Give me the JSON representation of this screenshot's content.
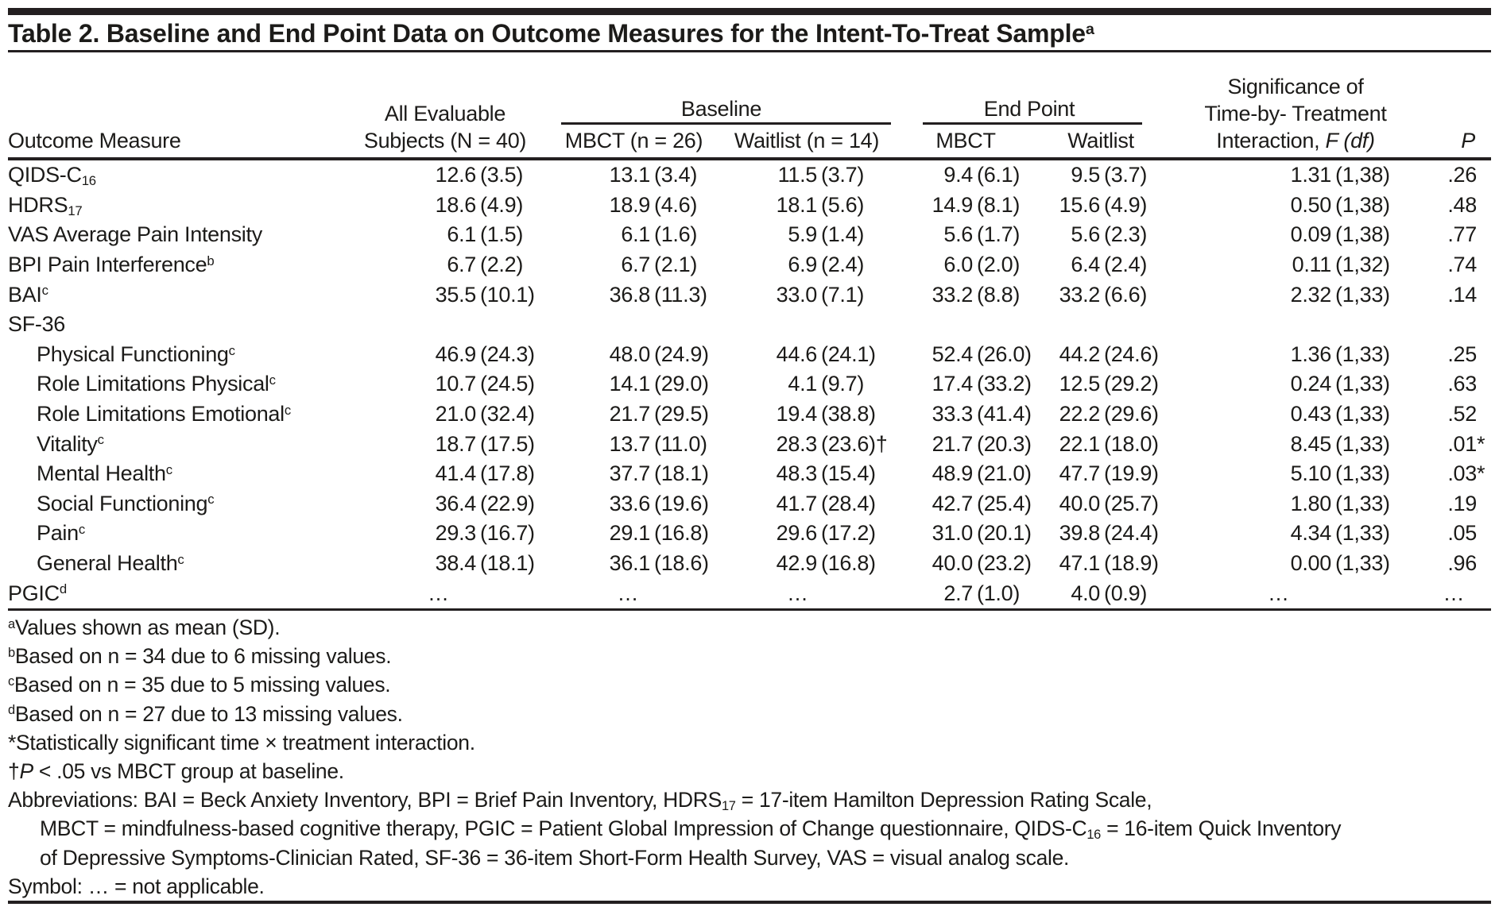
{
  "title": [
    {
      "t": "Table 2. Baseline and End Point Data on Outcome Measures for the Intent-To-Treat Sample"
    },
    {
      "t": "a",
      "style": "sup"
    }
  ],
  "table": {
    "headers": {
      "outcome_measure": "Outcome Measure",
      "all_evaluable": [
        "All Evaluable",
        "Subjects (N = 40)"
      ],
      "baseline_group": "Baseline",
      "baseline_mbct": "MBCT (n = 26)",
      "baseline_waitlist": "Waitlist (n = 14)",
      "endpoint_group": "End Point",
      "endpoint_mbct": "MBCT",
      "endpoint_waitlist": "Waitlist",
      "significance": [
        "Significance of",
        "Time-by- Treatment"
      ],
      "significance_line3": [
        {
          "t": "Interaction, "
        },
        {
          "t": "F (df)",
          "style": "i"
        }
      ],
      "p": [
        {
          "t": "P",
          "style": "i"
        }
      ]
    },
    "rows": [
      {
        "label": [
          {
            "t": "QIDS-C"
          },
          {
            "t": "16",
            "style": "sub"
          }
        ],
        "indent": false,
        "values": [
          "12.6 (3.5)",
          "13.1 (3.4)",
          "11.5 (3.7)",
          "9.4 (6.1)",
          "9.5 (3.7)",
          "1.31 (1,38)",
          ".26"
        ]
      },
      {
        "label": [
          {
            "t": "HDRS"
          },
          {
            "t": "17",
            "style": "sub"
          }
        ],
        "indent": false,
        "values": [
          "18.6 (4.9)",
          "18.9 (4.6)",
          "18.1 (5.6)",
          "14.9 (8.1)",
          "15.6 (4.9)",
          "0.50 (1,38)",
          ".48"
        ]
      },
      {
        "label": [
          {
            "t": "VAS Average Pain Intensity"
          }
        ],
        "indent": false,
        "values": [
          "6.1 (1.5)",
          "6.1 (1.6)",
          "5.9 (1.4)",
          "5.6 (1.7)",
          "5.6 (2.3)",
          "0.09 (1,38)",
          ".77"
        ]
      },
      {
        "label": [
          {
            "t": "BPI Pain Interference"
          },
          {
            "t": "b",
            "style": "sup"
          }
        ],
        "indent": false,
        "values": [
          "6.7 (2.2)",
          "6.7 (2.1)",
          "6.9 (2.4)",
          "6.0 (2.0)",
          "6.4 (2.4)",
          "0.11 (1,32)",
          ".74"
        ]
      },
      {
        "label": [
          {
            "t": "BAI"
          },
          {
            "t": "c",
            "style": "sup"
          }
        ],
        "indent": false,
        "values": [
          "35.5 (10.1)",
          "36.8 (11.3)",
          "33.0 (7.1)",
          "33.2 (8.8)",
          "33.2 (6.6)",
          "2.32 (1,33)",
          ".14"
        ]
      },
      {
        "label": [
          {
            "t": "SF-36"
          }
        ],
        "indent": false,
        "values": [
          "",
          "",
          "",
          "",
          "",
          "",
          ""
        ]
      },
      {
        "label": [
          {
            "t": "Physical Functioning"
          },
          {
            "t": "c",
            "style": "sup"
          }
        ],
        "indent": true,
        "values": [
          "46.9 (24.3)",
          "48.0 (24.9)",
          "44.6 (24.1)",
          "52.4 (26.0)",
          "44.2 (24.6)",
          "1.36 (1,33)",
          ".25"
        ]
      },
      {
        "label": [
          {
            "t": "Role Limitations Physical"
          },
          {
            "t": "c",
            "style": "sup"
          }
        ],
        "indent": true,
        "values": [
          "10.7 (24.5)",
          "14.1 (29.0)",
          "4.1 (9.7)",
          "17.4 (33.2)",
          "12.5 (29.2)",
          "0.24 (1,33)",
          ".63"
        ]
      },
      {
        "label": [
          {
            "t": "Role Limitations Emotional"
          },
          {
            "t": "c",
            "style": "sup"
          }
        ],
        "indent": true,
        "values": [
          "21.0 (32.4)",
          "21.7 (29.5)",
          "19.4 (38.8)",
          "33.3 (41.4)",
          "22.2 (29.6)",
          "0.43 (1,33)",
          ".52"
        ]
      },
      {
        "label": [
          {
            "t": "Vitality"
          },
          {
            "t": "c",
            "style": "sup"
          }
        ],
        "indent": true,
        "values": [
          "18.7 (17.5)",
          "13.7 (11.0)",
          "28.3 (23.6)†",
          "21.7 (20.3)",
          "22.1 (18.0)",
          "8.45 (1,33)",
          ".01*"
        ]
      },
      {
        "label": [
          {
            "t": "Mental Health"
          },
          {
            "t": "c",
            "style": "sup"
          }
        ],
        "indent": true,
        "values": [
          "41.4 (17.8)",
          "37.7 (18.1)",
          "48.3 (15.4)",
          "48.9 (21.0)",
          "47.7 (19.9)",
          "5.10 (1,33)",
          ".03*"
        ]
      },
      {
        "label": [
          {
            "t": "Social Functioning"
          },
          {
            "t": "c",
            "style": "sup"
          }
        ],
        "indent": true,
        "values": [
          "36.4 (22.9)",
          "33.6 (19.6)",
          "41.7 (28.4)",
          "42.7 (25.4)",
          "40.0 (25.7)",
          "1.80 (1,33)",
          ".19"
        ]
      },
      {
        "label": [
          {
            "t": "Pain"
          },
          {
            "t": "c",
            "style": "sup"
          }
        ],
        "indent": true,
        "values": [
          "29.3 (16.7)",
          "29.1 (16.8)",
          "29.6 (17.2)",
          "31.0 (20.1)",
          "39.8 (24.4)",
          "4.34 (1,33)",
          ".05"
        ]
      },
      {
        "label": [
          {
            "t": "General Health"
          },
          {
            "t": "c",
            "style": "sup"
          }
        ],
        "indent": true,
        "values": [
          "38.4 (18.1)",
          "36.1 (18.6)",
          "42.9 (16.8)",
          "40.0 (23.2)",
          "47.1 (18.9)",
          "0.00 (1,33)",
          ".96"
        ]
      },
      {
        "label": [
          {
            "t": "PGIC"
          },
          {
            "t": "d",
            "style": "sup"
          }
        ],
        "indent": false,
        "values": [
          "…",
          "…",
          "…",
          "2.7 (1.0)",
          "4.0 (0.9)",
          "…",
          "…"
        ]
      }
    ]
  },
  "footnotes": [
    {
      "indent": false,
      "segments": [
        {
          "t": "a",
          "style": "sup"
        },
        {
          "t": "Values shown as mean (SD)."
        }
      ]
    },
    {
      "indent": false,
      "segments": [
        {
          "t": "b",
          "style": "sup"
        },
        {
          "t": "Based on n = 34 due to 6 missing values."
        }
      ]
    },
    {
      "indent": false,
      "segments": [
        {
          "t": "c",
          "style": "sup"
        },
        {
          "t": "Based on n = 35 due to 5 missing values."
        }
      ]
    },
    {
      "indent": false,
      "segments": [
        {
          "t": "d",
          "style": "sup"
        },
        {
          "t": "Based on n = 27 due to 13 missing values."
        }
      ]
    },
    {
      "indent": false,
      "segments": [
        {
          "t": "*Statistically significant time × treatment interaction."
        }
      ]
    },
    {
      "indent": false,
      "segments": [
        {
          "t": "†"
        },
        {
          "t": "P",
          "style": "i"
        },
        {
          "t": " < .05 vs MBCT group at baseline."
        }
      ]
    },
    {
      "indent": false,
      "segments": [
        {
          "t": "Abbreviations: BAI = Beck Anxiety Inventory, BPI = Brief Pain Inventory, HDRS"
        },
        {
          "t": "17",
          "style": "sub"
        },
        {
          "t": " = 17-item Hamilton Depression Rating Scale,"
        }
      ]
    },
    {
      "indent": true,
      "segments": [
        {
          "t": "MBCT = mindfulness-based cognitive therapy, PGIC = Patient Global Impression of Change questionnaire, QIDS-C"
        },
        {
          "t": "16",
          "style": "sub"
        },
        {
          "t": " = 16-item Quick Inventory"
        }
      ]
    },
    {
      "indent": true,
      "segments": [
        {
          "t": "of Depressive Symptoms-Clinician Rated, SF-36 = 36-item Short-Form Health Survey, VAS = visual analog scale."
        }
      ]
    },
    {
      "indent": false,
      "segments": [
        {
          "t": "Symbol: … = not applicable."
        }
      ]
    }
  ]
}
